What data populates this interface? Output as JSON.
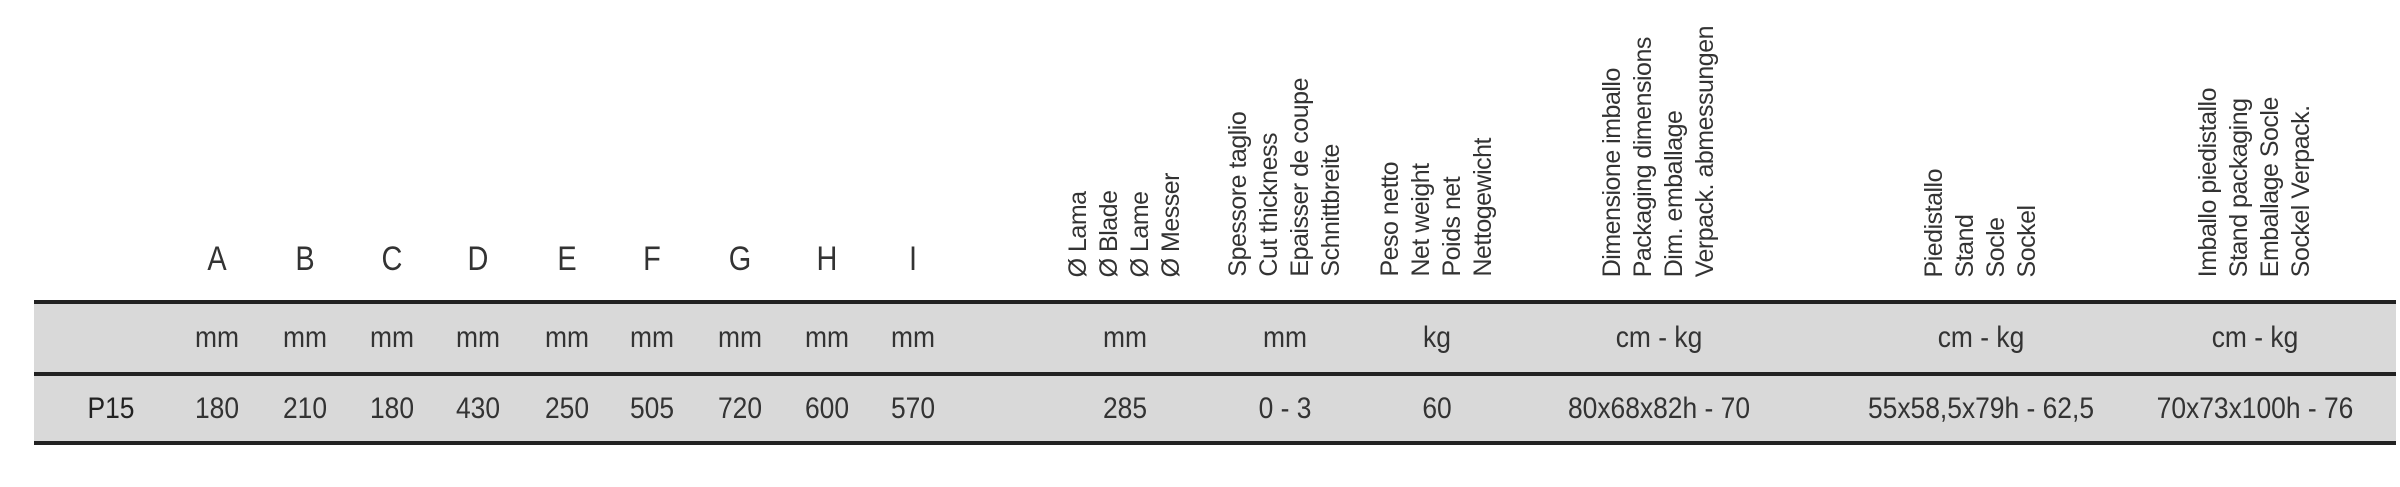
{
  "table": {
    "columns": [
      {
        "header": [
          "A"
        ],
        "unit": "mm"
      },
      {
        "header": [
          "B"
        ],
        "unit": "mm"
      },
      {
        "header": [
          "C"
        ],
        "unit": "mm"
      },
      {
        "header": [
          "D"
        ],
        "unit": "mm"
      },
      {
        "header": [
          "E"
        ],
        "unit": "mm"
      },
      {
        "header": [
          "F"
        ],
        "unit": "mm"
      },
      {
        "header": [
          "G"
        ],
        "unit": "mm"
      },
      {
        "header": [
          "H"
        ],
        "unit": "mm"
      },
      {
        "header": [
          "I"
        ],
        "unit": "mm"
      },
      {
        "header": [
          "Ø Lama",
          "Ø Blade",
          "Ø Lame",
          "Ø Messer"
        ],
        "unit": "mm"
      },
      {
        "header": [
          "Spessore taglio",
          "Cut thickness",
          "Epaisser de coupe",
          "Schnittbreite"
        ],
        "unit": "mm"
      },
      {
        "header": [
          "Peso netto",
          "Net weight",
          "Poids net",
          "Nettogewicht"
        ],
        "unit": "kg"
      },
      {
        "header": [
          "Dimensione imballo",
          "Packaging dimensions",
          "Dim. emballage",
          "Verpack. abmessungen"
        ],
        "unit": "cm - kg"
      },
      {
        "header": [
          "Piedistallo",
          "Stand",
          "Socle",
          "Sockel"
        ],
        "unit": "cm - kg"
      },
      {
        "header": [
          "Imballo piedistallo",
          "Stand packaging",
          "Emballage Socle",
          "Sockel Verpack."
        ],
        "unit": "cm - kg"
      }
    ],
    "rows": [
      {
        "label": "P15",
        "values": [
          180,
          210,
          180,
          430,
          250,
          505,
          720,
          600,
          570,
          285,
          "0 - 3",
          60,
          "80x68x82h - 70",
          "55x58,5x79h - 62,5",
          "70x73x100h - 76"
        ]
      }
    ]
  }
}
